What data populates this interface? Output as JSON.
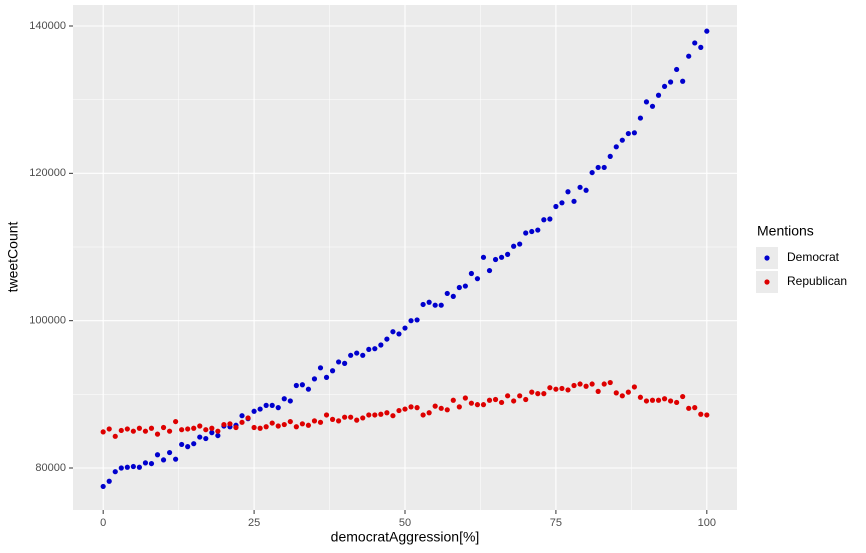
{
  "chart_data": {
    "type": "scatter",
    "x_label": "democratAggression[%]",
    "y_label": "tweetCount",
    "legend_title": "Mentions",
    "legend": "right",
    "grid": true,
    "xlim": [
      -5,
      105
    ],
    "ylim": [
      74300,
      142850
    ],
    "xticks": [
      0,
      25,
      50,
      75,
      100
    ],
    "yticks": [
      80000,
      100000,
      120000,
      140000
    ],
    "x": [
      0,
      1,
      2,
      3,
      4,
      5,
      6,
      7,
      8,
      9,
      10,
      11,
      12,
      13,
      14,
      15,
      16,
      17,
      18,
      19,
      20,
      21,
      22,
      23,
      24,
      25,
      26,
      27,
      28,
      29,
      30,
      31,
      32,
      33,
      34,
      35,
      36,
      37,
      38,
      39,
      40,
      41,
      42,
      43,
      44,
      45,
      46,
      47,
      48,
      49,
      50,
      51,
      52,
      53,
      54,
      55,
      56,
      57,
      58,
      59,
      60,
      61,
      62,
      63,
      64,
      65,
      66,
      67,
      68,
      69,
      70,
      71,
      72,
      73,
      74,
      75,
      76,
      77,
      78,
      79,
      80,
      81,
      82,
      83,
      84,
      85,
      86,
      87,
      88,
      89,
      90,
      91,
      92,
      93,
      94,
      95,
      96,
      97,
      98,
      99,
      100
    ],
    "series": [
      {
        "name": "Democrat",
        "color": "#0000cd",
        "values": [
          77500,
          78200,
          79500,
          80000,
          80100,
          80200,
          80100,
          80700,
          80600,
          81800,
          81100,
          82100,
          81200,
          83200,
          82900,
          83300,
          84200,
          84000,
          84800,
          84400,
          85700,
          85600,
          85800,
          87100,
          86700,
          87700,
          88000,
          88500,
          88500,
          88200,
          89400,
          89100,
          91200,
          91300,
          90700,
          92100,
          93600,
          92300,
          93200,
          94400,
          94200,
          95300,
          95600,
          95300,
          96100,
          96200,
          96700,
          97500,
          98500,
          98200,
          99000,
          100000,
          100100,
          102200,
          102500,
          102100,
          102100,
          103700,
          103300,
          104500,
          104700,
          106400,
          105700,
          108600,
          106800,
          108300,
          108600,
          109000,
          110100,
          110400,
          111900,
          112100,
          112300,
          113700,
          113800,
          115500,
          116000,
          117500,
          116200,
          118100,
          117700,
          120100,
          120800,
          120800,
          122300,
          123600,
          124500,
          125400,
          125500,
          127500,
          129700,
          129100,
          130600,
          131800,
          132400,
          134100,
          132500,
          135900,
          137700,
          137100,
          139300
        ]
      },
      {
        "name": "Republican",
        "color": "#dd0000",
        "values": [
          84900,
          85300,
          84300,
          85100,
          85300,
          85000,
          85400,
          85000,
          85400,
          84600,
          85500,
          85000,
          86300,
          85200,
          85300,
          85400,
          85700,
          85200,
          85400,
          85000,
          85900,
          86000,
          85500,
          86200,
          86800,
          85500,
          85400,
          85600,
          86100,
          85700,
          85900,
          86300,
          85600,
          86000,
          85800,
          86400,
          86200,
          87200,
          86600,
          86400,
          86900,
          86900,
          86500,
          86800,
          87200,
          87200,
          87300,
          87500,
          87100,
          87800,
          88000,
          88300,
          88200,
          87200,
          87500,
          88400,
          88100,
          87900,
          89200,
          88300,
          89500,
          88800,
          88600,
          88600,
          89200,
          89300,
          88900,
          89800,
          89100,
          89800,
          89300,
          90300,
          90100,
          90100,
          90900,
          90700,
          90800,
          90600,
          91200,
          91400,
          91100,
          91400,
          90400,
          91400,
          91600,
          90200,
          89800,
          90300,
          91000,
          89600,
          89100,
          89200,
          89200,
          89400,
          89100,
          88900,
          89700,
          88100,
          88200,
          87300,
          87200
        ]
      }
    ]
  }
}
